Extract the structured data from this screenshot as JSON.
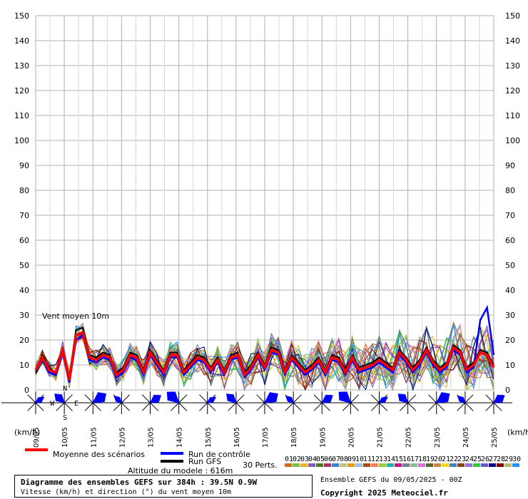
{
  "chart_data": {
    "type": "line",
    "y_range": [
      0,
      150
    ],
    "y_ticks": [
      0,
      10,
      20,
      30,
      40,
      50,
      60,
      70,
      80,
      90,
      100,
      110,
      120,
      130,
      140,
      150
    ],
    "grid": true,
    "x_date_labels": [
      "09/05",
      "10/05",
      "11/05",
      "12/05",
      "13/05",
      "14/05",
      "15/05",
      "16/05",
      "17/05",
      "18/05",
      "19/05",
      "20/05",
      "21/05",
      "22/05",
      "23/05",
      "24/05",
      "25/05"
    ],
    "unit_left": "(km/h)",
    "unit_right": "(km/h)",
    "annotation": "Vent moyen 10m",
    "compass": {
      "n": "N",
      "s": "S",
      "e": "E",
      "w": "W"
    },
    "mean": {
      "name": "Moyenne des scénarios",
      "color": "#ff0000",
      "values": [
        8,
        13,
        8,
        7,
        16,
        4,
        22,
        23,
        13,
        12,
        14,
        13,
        6,
        8,
        14,
        13,
        7,
        15,
        11,
        7,
        14,
        14,
        7,
        10,
        13,
        12,
        8,
        12,
        7,
        13,
        14,
        6,
        9,
        14,
        9,
        16,
        15,
        7,
        13,
        10,
        7,
        9,
        12,
        7,
        13,
        12,
        7,
        13,
        8,
        9,
        10,
        12,
        10,
        8,
        15,
        12,
        8,
        11,
        16,
        11,
        8,
        10,
        17,
        15,
        8,
        10,
        15,
        14,
        9
      ]
    },
    "control": {
      "name": "Run de contrôle",
      "color": "#0000ff",
      "values": [
        8,
        12,
        7,
        6,
        15,
        3,
        20,
        22,
        12,
        11,
        13,
        12,
        5,
        7,
        13,
        12,
        6,
        14,
        10,
        6,
        13,
        13,
        6,
        9,
        12,
        11,
        7,
        11,
        6,
        12,
        13,
        5,
        8,
        13,
        8,
        15,
        14,
        6,
        12,
        9,
        6,
        8,
        11,
        6,
        12,
        11,
        6,
        12,
        7,
        8,
        9,
        11,
        9,
        7,
        14,
        11,
        7,
        10,
        15,
        10,
        7,
        9,
        16,
        14,
        7,
        9,
        28,
        33,
        14
      ]
    },
    "gfs": {
      "name": "Run GFS",
      "color": "#000000",
      "values": [
        7,
        14,
        9,
        6,
        17,
        5,
        24,
        25,
        14,
        13,
        15,
        14,
        7,
        9,
        15,
        14,
        8,
        16,
        12,
        8,
        15,
        15,
        8,
        11,
        14,
        13,
        9,
        13,
        8,
        14,
        15,
        7,
        10,
        15,
        10,
        17,
        16,
        8,
        14,
        11,
        8,
        10,
        13,
        8,
        14,
        13,
        8,
        14,
        9,
        10,
        11,
        13,
        11,
        9,
        16,
        13,
        9,
        12,
        17,
        12,
        9,
        11,
        18,
        16,
        9,
        11,
        16,
        15,
        10
      ]
    },
    "perturbations_label": "30 Perts.",
    "perturbation_ids": [
      "01",
      "02",
      "03",
      "04",
      "05",
      "06",
      "07",
      "08",
      "09",
      "10",
      "11",
      "12",
      "13",
      "14",
      "15",
      "16",
      "17",
      "18",
      "19",
      "20",
      "21",
      "22",
      "23",
      "24",
      "25",
      "26",
      "27",
      "28",
      "29",
      "30"
    ],
    "perturbation_colors": [
      "#d2691e",
      "#7fbf3f",
      "#e6b422",
      "#8a5ab8",
      "#4a7a2a",
      "#b03060",
      "#3a7fd0",
      "#c0c080",
      "#e0a000",
      "#a0c0e0",
      "#a05020",
      "#ff7f50",
      "#9acd32",
      "#20b2aa",
      "#c71585",
      "#708090",
      "#8fbc8f",
      "#da70d6",
      "#556b2f",
      "#cd853f",
      "#ffd700",
      "#4682b4",
      "#8b4513",
      "#9370db",
      "#32cd32",
      "#6a5acd",
      "#00008b",
      "#800000",
      "#bdb76b",
      "#1e90ff"
    ]
  },
  "legend": {
    "altitude": "Altitude du modele : 616m"
  },
  "footer": {
    "title": "Diagramme des ensembles GEFS sur 384h : 39.5N 0.9W",
    "subtitle": "Vitesse (km/h) et direction (°) du vent moyen 10m",
    "ensemble": "Ensemble GEFS du 09/05/2025 - 00Z",
    "copyright": "Copyright 2025 Meteociel.fr"
  }
}
